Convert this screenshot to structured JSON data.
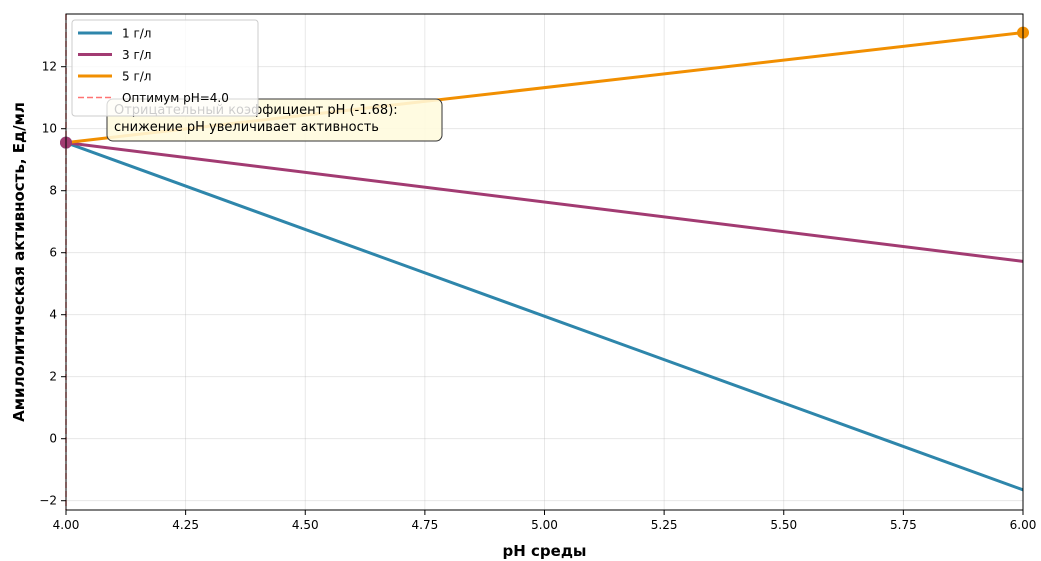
{
  "chart_data": {
    "type": "line",
    "xlabel": "pH среды",
    "ylabel": "Амилолитическая активность, Ед/мл",
    "xlim": [
      4.0,
      6.0
    ],
    "ylim": [
      -2.3,
      13.7
    ],
    "xticks": [
      4.0,
      4.25,
      4.5,
      4.75,
      5.0,
      5.25,
      5.5,
      5.75,
      6.0
    ],
    "xtick_labels": [
      "4.00",
      "4.25",
      "4.50",
      "4.75",
      "5.00",
      "5.25",
      "5.50",
      "5.75",
      "6.00"
    ],
    "yticks": [
      -2,
      0,
      2,
      4,
      6,
      8,
      10,
      12
    ],
    "ytick_labels": [
      "−2",
      "0",
      "2",
      "4",
      "6",
      "8",
      "10",
      "12"
    ],
    "grid": true,
    "legend_position": "top-left",
    "series": [
      {
        "name": "1 г/л",
        "color": "#2e86ab",
        "x": [
          4.0,
          6.0
        ],
        "y": [
          9.55,
          -1.65
        ],
        "marker_at_x": 4.0
      },
      {
        "name": "3 г/л",
        "color": "#a23b72",
        "x": [
          4.0,
          6.0
        ],
        "y": [
          9.55,
          5.72
        ],
        "marker_at_x": 4.0
      },
      {
        "name": "5 г/л",
        "color": "#f18f01",
        "x": [
          4.0,
          6.0
        ],
        "y": [
          9.55,
          13.1
        ],
        "marker_at_x": 6.0
      }
    ],
    "reference_line": {
      "label": "Оптимум pH=4.0",
      "x": 4.0,
      "color": "#ff4444",
      "style": "dashed"
    },
    "annotation": {
      "lines": [
        "Отрицательный коэффициент pH (-1.68):",
        "снижение pH увеличивает активность"
      ],
      "box_color": "#fffbdd"
    }
  }
}
